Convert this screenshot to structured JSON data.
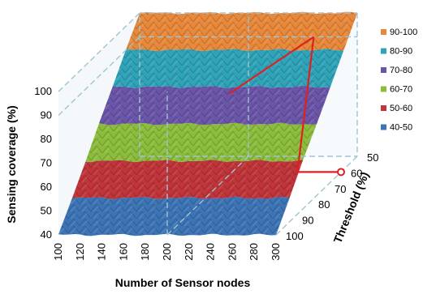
{
  "chart_data": {
    "type": "surface3d",
    "title": "",
    "xlabel": "Number of Sensor nodes",
    "ylabel": "Sensing coverage (%)",
    "zlabel": "Threshold (%)",
    "x_ticks": [
      "100",
      "120",
      "140",
      "160",
      "180",
      "200",
      "220",
      "240",
      "260",
      "280",
      "300"
    ],
    "y_ticks": [
      "40",
      "50",
      "60",
      "70",
      "80",
      "90",
      "100"
    ],
    "z_ticks": [
      "50",
      "60",
      "70",
      "80",
      "90",
      "100"
    ],
    "xlim": [
      100,
      300
    ],
    "ylim": [
      40,
      100
    ],
    "zlim": [
      50,
      100
    ],
    "legend_position": "right",
    "legend": [
      {
        "label": "90-100",
        "color": "#e8883a"
      },
      {
        "label": "80-90",
        "color": "#2fa3b8"
      },
      {
        "label": "70-80",
        "color": "#6b55a8"
      },
      {
        "label": "60-70",
        "color": "#8cbc3c"
      },
      {
        "label": "50-60",
        "color": "#c0353a"
      },
      {
        "label": "40-50",
        "color": "#3d74b5"
      }
    ],
    "surface_bands": [
      {
        "range": "40-50",
        "color": "#3d74b5"
      },
      {
        "range": "50-60",
        "color": "#c0353a"
      },
      {
        "range": "60-70",
        "color": "#8cbc3c"
      },
      {
        "range": "70-80",
        "color": "#6b55a8"
      },
      {
        "range": "80-90",
        "color": "#2fa3b8"
      },
      {
        "range": "90-100",
        "color": "#e8883a"
      }
    ],
    "highlight": {
      "nodes": 260,
      "threshold": 60,
      "coverage": 90
    },
    "grid": true
  }
}
